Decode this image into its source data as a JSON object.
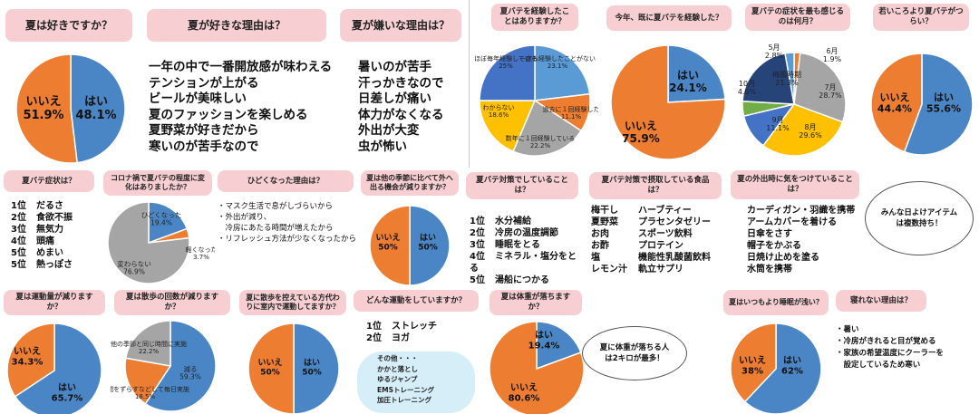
{
  "colors": {
    "blue": "#4a86c5",
    "orange": "#ed7d31",
    "gray": "#a5a5a5",
    "yellow": "#ffc000",
    "navy": "#264478",
    "lightblue": "#5b9bd5",
    "green": "#70ad47",
    "title_bg": "#f7cfd3"
  },
  "chart_data": [
    {
      "type": "pie",
      "id": "p1",
      "title": "夏は好きですか？",
      "slices": [
        {
          "label": "はい",
          "value": 48.1,
          "color": "#4a86c5"
        },
        {
          "label": "いいえ",
          "value": 51.9,
          "color": "#ed7d31"
        }
      ],
      "labels": [
        {
          "name": "はい",
          "value": "48.1%"
        },
        {
          "name": "いいえ",
          "value": "51.9%"
        }
      ]
    },
    {
      "type": "pie",
      "id": "p2",
      "title": "夏バテを経験したことはありますか？",
      "slices": [
        {
          "label": "一度も経験したことがない",
          "value": 23.1,
          "color": "#5b9bd5"
        },
        {
          "label": "過去に１回経験した",
          "value": 11.1,
          "color": "#ed7d31"
        },
        {
          "label": "数年に１回経験している",
          "value": 22.2,
          "color": "#a5a5a5"
        },
        {
          "label": "わからない",
          "value": 18.6,
          "color": "#ffc000"
        },
        {
          "label": "ほぼ毎年経験している",
          "value": 25,
          "color": "#4472c4"
        }
      ],
      "labels": [
        {
          "name": "一度も経験したことがない",
          "value": "23.1%"
        },
        {
          "name": "過去に１回経験した",
          "value": "11.1%"
        },
        {
          "name": "数年に１回経験している",
          "value": "22.2%"
        },
        {
          "name": "わからない",
          "value": "18.6%"
        },
        {
          "name": "ほぼ毎年経験している",
          "value": "25%"
        }
      ]
    },
    {
      "type": "pie",
      "id": "p3",
      "title": "今年、既に夏バテを経験した？",
      "slices": [
        {
          "label": "はい",
          "value": 24.1,
          "color": "#4a86c5"
        },
        {
          "label": "いいえ",
          "value": 75.9,
          "color": "#ed7d31"
        }
      ],
      "labels": [
        {
          "name": "はい",
          "value": "24.1%"
        },
        {
          "name": "いいえ",
          "value": "75.9%"
        }
      ]
    },
    {
      "type": "pie",
      "id": "p4",
      "title": "夏バテの症状を最も感じるのは何月？",
      "slices": [
        {
          "label": "6月",
          "value": 1.9,
          "color": "#ed7d31"
        },
        {
          "label": "7月",
          "value": 28.7,
          "color": "#a5a5a5"
        },
        {
          "label": "8月",
          "value": 29.6,
          "color": "#ffc000"
        },
        {
          "label": "9月",
          "value": 11.1,
          "color": "#4472c4"
        },
        {
          "label": "10月",
          "value": 4.6,
          "color": "#70ad47"
        },
        {
          "label": "梅雨時期",
          "value": 21.3,
          "color": "#264478"
        },
        {
          "label": "5月",
          "value": 2.8,
          "color": "#5b9bd5"
        }
      ],
      "labels": [
        {
          "name": "5月",
          "value": "2.8%"
        },
        {
          "name": "6月",
          "value": "1.9%"
        },
        {
          "name": "7月",
          "value": "28.7%"
        },
        {
          "name": "8月",
          "value": "29.6%"
        },
        {
          "name": "9月",
          "value": "11.1%"
        },
        {
          "name": "10月",
          "value": "4.6%"
        },
        {
          "name": "梅雨時期",
          "value": "21.3%"
        }
      ]
    },
    {
      "type": "pie",
      "id": "p5",
      "title": "若いころより夏バテがつらい？",
      "slices": [
        {
          "label": "はい",
          "value": 55.6,
          "color": "#4a86c5"
        },
        {
          "label": "いいえ",
          "value": 44.4,
          "color": "#ed7d31"
        }
      ],
      "labels": [
        {
          "name": "はい",
          "value": "55.6%"
        },
        {
          "name": "いいえ",
          "value": "44.4%"
        }
      ]
    },
    {
      "type": "pie",
      "id": "p6",
      "title": "コロナ禍で夏バテの程度に変化はありましたか？",
      "slices": [
        {
          "label": "ひどくなった",
          "value": 19.4,
          "color": "#4a86c5"
        },
        {
          "label": "軽くなった",
          "value": 3.7,
          "color": "#ed7d31"
        },
        {
          "label": "変わらない",
          "value": 76.9,
          "color": "#a5a5a5"
        }
      ],
      "labels": [
        {
          "name": "ひどくなった",
          "value": "19.4%"
        },
        {
          "name": "軽くなった",
          "value": "3.7%"
        },
        {
          "name": "変わらない",
          "value": "76.9%"
        }
      ]
    },
    {
      "type": "pie",
      "id": "p7",
      "title": "夏は他の季節に比べて外へ出る機会が減りますか？",
      "slices": [
        {
          "label": "はい",
          "value": 50,
          "color": "#4a86c5"
        },
        {
          "label": "いいえ",
          "value": 50,
          "color": "#ed7d31"
        }
      ],
      "labels": [
        {
          "name": "はい",
          "value": "50%"
        },
        {
          "name": "いいえ",
          "value": "50%"
        }
      ]
    },
    {
      "type": "pie",
      "id": "p8",
      "title": "夏は運動量が減りますか？",
      "slices": [
        {
          "label": "はい",
          "value": 65.7,
          "color": "#4a86c5"
        },
        {
          "label": "いいえ",
          "value": 34.3,
          "color": "#ed7d31"
        }
      ],
      "labels": [
        {
          "name": "はい",
          "value": "65.7%"
        },
        {
          "name": "いいえ",
          "value": "34.3%"
        }
      ]
    },
    {
      "type": "pie",
      "id": "p9",
      "title": "夏は散歩の回数が減りますか？",
      "slices": [
        {
          "label": "減る",
          "value": 59.3,
          "color": "#4a86c5"
        },
        {
          "label": "時間をずらすなどして毎日実施",
          "value": 18.5,
          "color": "#ed7d31"
        },
        {
          "label": "他の季節と同じ時間に実施",
          "value": 22.2,
          "color": "#a5a5a5"
        }
      ],
      "labels": [
        {
          "name": "減る",
          "value": "59.3%"
        },
        {
          "name": "時間をずらすなどして毎日実施",
          "value": "18.5%"
        },
        {
          "name": "他の季節と同じ時間に実施",
          "value": "22.2%"
        }
      ]
    },
    {
      "type": "pie",
      "id": "p10",
      "title": "夏に散歩を控えている方代わりに室内で運動してますか？",
      "slices": [
        {
          "label": "はい",
          "value": 50,
          "color": "#4a86c5"
        },
        {
          "label": "いいえ",
          "value": 50,
          "color": "#ed7d31"
        }
      ],
      "labels": [
        {
          "name": "はい",
          "value": "50%"
        },
        {
          "name": "いいえ",
          "value": "50%"
        }
      ]
    },
    {
      "type": "pie",
      "id": "p11",
      "title": "夏は体重が落ちますか？",
      "slices": [
        {
          "label": "はい",
          "value": 19.4,
          "color": "#4a86c5"
        },
        {
          "label": "いいえ",
          "value": 80.6,
          "color": "#ed7d31"
        }
      ],
      "labels": [
        {
          "name": "はい",
          "value": "19.4%"
        },
        {
          "name": "いいえ",
          "value": "80.6%"
        }
      ]
    },
    {
      "type": "pie",
      "id": "p12",
      "title": "夏はいつもより睡眠が浅い？",
      "slices": [
        {
          "label": "はい",
          "value": 62,
          "color": "#4a86c5"
        },
        {
          "label": "いいえ",
          "value": 38,
          "color": "#ed7d31"
        }
      ],
      "labels": [
        {
          "name": "はい",
          "value": "62%"
        },
        {
          "name": "いいえ",
          "value": "38%"
        }
      ]
    }
  ],
  "texts": {
    "t_like_reason": "夏が好きな理由は？",
    "like_reasons": [
      "一年の中で一番開放感が味わえる",
      "テンションが上がる",
      "ビールが美味しい",
      "夏のファッションを楽しめる",
      "夏野菜が好きだから",
      "寒いのが苦手なので"
    ],
    "t_dislike_reason": "夏が嫌いな理由は？",
    "dislike_reasons": [
      "暑いのが苦手",
      "汗っかきなので",
      "日差しが痛い",
      "体力がなくなる",
      "外出が大変",
      "虫が怖い"
    ],
    "t_symptom": "夏バテ症状は？",
    "symptoms": [
      {
        "rank": "1位",
        "text": "だるさ"
      },
      {
        "rank": "2位",
        "text": "食欲不振"
      },
      {
        "rank": "3位",
        "text": "無気力"
      },
      {
        "rank": "4位",
        "text": "頭痛"
      },
      {
        "rank": "5位",
        "text": "めまい"
      },
      {
        "rank": "5位",
        "text": "熱っぽさ"
      }
    ],
    "t_worse_reason": "ひどくなった理由は？",
    "worse_reasons": [
      "・マスク生活で息がしづらいから",
      "・外出が減り、",
      "　冷房にあたる時間が増えたから",
      "・リフレッシュ方法が少なくなったから"
    ],
    "t_measures": "夏バテ対策でしていることは？",
    "measures": [
      {
        "rank": "1位",
        "text": "水分補給"
      },
      {
        "rank": "2位",
        "text": "冷房の温度調節"
      },
      {
        "rank": "3位",
        "text": "睡眠をとる"
      },
      {
        "rank": "4位",
        "text": "ミネラル・塩分をとる"
      },
      {
        "rank": "5位",
        "text": "湯船につかる"
      }
    ],
    "t_foods": "夏バテ対策で摂取している食品は？",
    "foods_left": [
      "梅干し",
      "夏野菜",
      "お肉",
      "お酢",
      "塩",
      "レモン汁"
    ],
    "foods_right": [
      "ハーブティー",
      "プラセンタゼリー",
      "スポーツ飲料",
      "プロテイン",
      "機能性乳酸菌飲料",
      "軌立サプリ"
    ],
    "t_outing": "夏の外出時に気をつけていることは？",
    "outing": [
      "カーディガン・羽織を携帯",
      "アームカバーを着ける",
      "日傘をさす",
      "帽子をかぶる",
      "日焼け止めを塗る",
      "水筒を携帯"
    ],
    "bubble_sun": "みんな日よけアイテムは複数持ち！",
    "t_exercise": "どんな運動をしていますか？",
    "exercise": [
      {
        "rank": "1位",
        "text": "ストレッチ"
      },
      {
        "rank": "2位",
        "text": "ヨガ"
      }
    ],
    "exercise_other": [
      "その他・・・",
      "かかと落とし",
      "ゆるジャンプ",
      "EMSトレーニング",
      "加圧トレーニング"
    ],
    "bubble_weight": "夏に体重が落ちる人は2キロが最多！",
    "t_nosleep": "寝れない理由は？",
    "nosleep": [
      "・暑い",
      "・冷房がきれると目が覚める",
      "・家族の希望温度にクーラーを",
      "　設定しているため寒い"
    ]
  }
}
